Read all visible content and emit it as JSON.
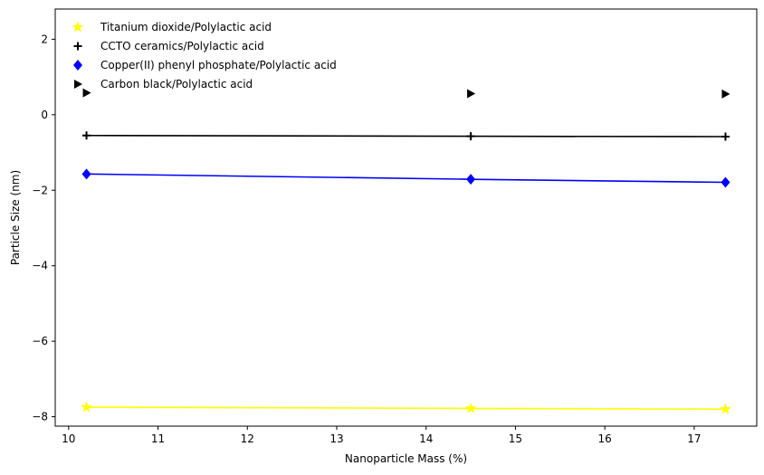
{
  "chart_data": {
    "type": "line",
    "title": "",
    "xlabel": "Nanoparticle Mass (%)",
    "ylabel": "Particle Size (nm)",
    "xlim": [
      9.85,
      17.7
    ],
    "ylim": [
      -8.25,
      2.8
    ],
    "xticks": [
      10,
      11,
      12,
      13,
      14,
      15,
      16,
      17
    ],
    "yticks": [
      -8,
      -6,
      -4,
      -2,
      0,
      2
    ],
    "grid": false,
    "legend_position": "top-left",
    "series": [
      {
        "name": "Titanium dioxide/Polylactic acid",
        "color": "#ffff00",
        "marker": "star",
        "line": true,
        "x": [
          10.2,
          14.5,
          17.35
        ],
        "y": [
          -7.75,
          -7.78,
          -7.8
        ]
      },
      {
        "name": "CCTO ceramics/Polylactic acid",
        "color": "#000000",
        "marker": "plus",
        "line": true,
        "x": [
          10.2,
          14.5,
          17.35
        ],
        "y": [
          -0.55,
          -0.57,
          -0.58
        ]
      },
      {
        "name": "Copper(II) phenyl phosphate/Polylactic acid",
        "color": "#0000ff",
        "marker": "diamond",
        "line": true,
        "x": [
          10.2,
          14.5,
          17.35
        ],
        "y": [
          -1.57,
          -1.71,
          -1.79
        ]
      },
      {
        "name": "Carbon black/Polylactic acid",
        "color": "#000000",
        "marker": "triangle-right",
        "line": false,
        "x": [
          10.2,
          14.5,
          17.35
        ],
        "y": [
          0.58,
          0.56,
          0.55
        ]
      }
    ]
  }
}
